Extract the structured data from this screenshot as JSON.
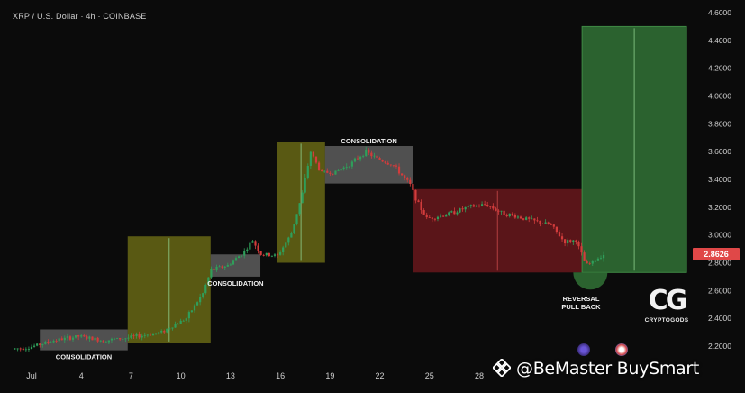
{
  "header": {
    "title": "XRP / U.S. Dollar · 4h · COINBASE"
  },
  "current_price": "2.8626",
  "watermark": {
    "text": "@BeMaster BuySmart"
  },
  "brand": {
    "logo": "CG",
    "name": "CRYPTOGODS"
  },
  "colors": {
    "background": "#0b0b0b",
    "up_candle": "#2f9e5a",
    "down_candle": "#d23c3c",
    "consolidation_box": "#8a8a8a",
    "yellow_box": "#9a9a1c",
    "red_box": "#8b1c22",
    "green_box": "#2f6b33",
    "price_tag": "#e04848"
  },
  "chart_data": {
    "type": "candlestick",
    "title": "XRP / U.S. Dollar · 4h · COINBASE",
    "y_axis": {
      "min": 2.1,
      "max": 4.65,
      "ticks": [
        "4.6000",
        "4.4000",
        "4.2000",
        "4.0000",
        "3.8000",
        "3.6000",
        "3.4000",
        "3.2000",
        "3.0000",
        "2.8000",
        "2.6000",
        "2.4000",
        "2.2000"
      ],
      "tick_values": [
        4.6,
        4.4,
        4.2,
        4.0,
        3.8,
        3.6,
        3.4,
        3.2,
        3.0,
        2.8,
        2.6,
        2.4,
        2.2
      ],
      "position": "right"
    },
    "x_axis": {
      "labels": [
        "Jul",
        "4",
        "7",
        "10",
        "13",
        "16",
        "19",
        "22",
        "25",
        "28"
      ],
      "label_days": [
        1,
        4,
        7,
        10,
        13,
        16,
        19,
        22,
        25,
        28
      ],
      "min_day": 0,
      "max_day": 43
    },
    "price_path": [
      {
        "day": 0.0,
        "price": 2.18
      },
      {
        "day": 1.0,
        "price": 2.19
      },
      {
        "day": 2.5,
        "price": 2.24
      },
      {
        "day": 4.0,
        "price": 2.27
      },
      {
        "day": 5.5,
        "price": 2.24
      },
      {
        "day": 7.0,
        "price": 2.26
      },
      {
        "day": 9.0,
        "price": 2.3
      },
      {
        "day": 10.5,
        "price": 2.4
      },
      {
        "day": 11.5,
        "price": 2.58
      },
      {
        "day": 12.0,
        "price": 2.75
      },
      {
        "day": 13.0,
        "price": 2.78
      },
      {
        "day": 14.0,
        "price": 2.88
      },
      {
        "day": 14.5,
        "price": 2.96
      },
      {
        "day": 15.0,
        "price": 2.86
      },
      {
        "day": 16.0,
        "price": 2.85
      },
      {
        "day": 16.8,
        "price": 3.0
      },
      {
        "day": 17.5,
        "price": 3.3
      },
      {
        "day": 18.0,
        "price": 3.6
      },
      {
        "day": 18.6,
        "price": 3.45
      },
      {
        "day": 19.5,
        "price": 3.45
      },
      {
        "day": 20.5,
        "price": 3.52
      },
      {
        "day": 21.3,
        "price": 3.6
      },
      {
        "day": 22.0,
        "price": 3.55
      },
      {
        "day": 23.0,
        "price": 3.5
      },
      {
        "day": 24.0,
        "price": 3.36
      },
      {
        "day": 24.5,
        "price": 3.22
      },
      {
        "day": 25.0,
        "price": 3.12
      },
      {
        "day": 26.0,
        "price": 3.14
      },
      {
        "day": 27.5,
        "price": 3.2
      },
      {
        "day": 28.6,
        "price": 3.22
      },
      {
        "day": 29.5,
        "price": 3.16
      },
      {
        "day": 30.5,
        "price": 3.13
      },
      {
        "day": 31.5,
        "price": 3.1
      },
      {
        "day": 32.5,
        "price": 3.07
      },
      {
        "day": 33.3,
        "price": 2.95
      },
      {
        "day": 34.0,
        "price": 2.96
      },
      {
        "day": 34.6,
        "price": 2.78
      },
      {
        "day": 35.0,
        "price": 2.8
      },
      {
        "day": 35.6,
        "price": 2.86
      }
    ],
    "zones": [
      {
        "kind": "consolidation",
        "label": "CONSOLIDATION",
        "label_pos": "below",
        "day_start": 1.5,
        "day_end": 6.8,
        "low": 2.17,
        "high": 2.32
      },
      {
        "kind": "yellow",
        "label": "",
        "day_start": 6.8,
        "day_end": 11.8,
        "low": 2.22,
        "high": 2.99
      },
      {
        "kind": "consolidation",
        "label": "CONSOLIDATION",
        "label_pos": "below",
        "day_start": 11.8,
        "day_end": 14.8,
        "low": 2.7,
        "high": 2.86
      },
      {
        "kind": "yellow",
        "label": "",
        "day_start": 15.8,
        "day_end": 18.7,
        "low": 2.8,
        "high": 3.67
      },
      {
        "kind": "consolidation",
        "label": "CONSOLIDATION",
        "label_pos": "above",
        "day_start": 18.7,
        "day_end": 24.0,
        "low": 3.37,
        "high": 3.64
      },
      {
        "kind": "red",
        "label": "",
        "day_start": 24.0,
        "day_end": 34.2,
        "low": 2.73,
        "high": 3.33
      },
      {
        "kind": "green",
        "label": "",
        "day_start": 34.2,
        "day_end": 40.5,
        "low": 2.73,
        "high": 4.5
      }
    ],
    "annotations": [
      {
        "text": "REVERSAL PULL BACK",
        "day": 34.7,
        "price": 2.73
      }
    ]
  }
}
